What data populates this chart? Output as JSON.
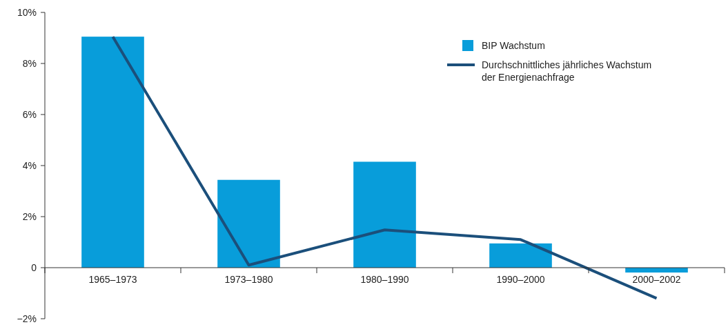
{
  "chart_data": {
    "type": "bar",
    "categories": [
      "1965–1973",
      "1973–1980",
      "1980–1990",
      "1990–2000",
      "2000–2002"
    ],
    "series": [
      {
        "name": "BIP Wachstum",
        "color": "#089dda",
        "values": [
          9.05,
          3.44,
          4.15,
          0.95,
          -0.19
        ]
      },
      {
        "name": "Durchschnittliches jährliches Wachstum\nder Energienachfrage",
        "type": "line",
        "color": "#1b4f7b",
        "values": [
          9.05,
          0.1,
          1.48,
          1.1,
          -1.2
        ]
      }
    ],
    "ylim": [
      -2,
      10
    ],
    "yticks": [
      {
        "value": -2,
        "label": "−2%"
      },
      0,
      {
        "value": 2,
        "label": "2%"
      },
      {
        "value": 4,
        "label": "4%"
      },
      {
        "value": 6,
        "label": "6%"
      },
      {
        "value": 8,
        "label": "8%"
      },
      {
        "value": 10,
        "label": "10%"
      }
    ],
    "grid": false,
    "legend": "top right",
    "marker": "none",
    "line_style": "solid"
  }
}
